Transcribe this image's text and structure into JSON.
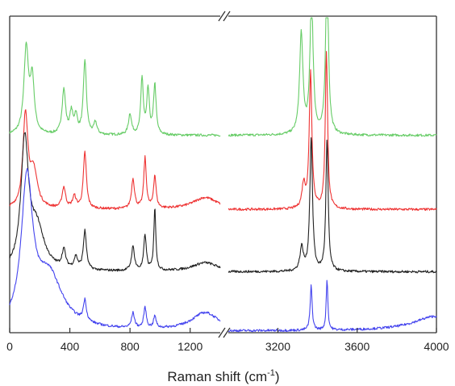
{
  "chart_data": {
    "type": "line",
    "title": "",
    "xlabel": "Raman shift (cm",
    "xlabel_sup": "-1",
    "xlabel_suffix": ")",
    "ylabel": "",
    "axis_break": true,
    "segments": [
      {
        "xlim": [
          0,
          1400
        ],
        "ticks": [
          0,
          400,
          800,
          1200
        ]
      },
      {
        "xlim": [
          2950,
          4000
        ],
        "ticks": [
          3200,
          3600,
          4000
        ]
      }
    ],
    "y_ticks_shown": false,
    "grid": false,
    "legend": "none",
    "series": [
      {
        "color": "#66cc66",
        "offset": 3.0,
        "baseline": 0.3,
        "peaks": [
          {
            "x": 110,
            "h": 1.45,
            "w": 18
          },
          {
            "x": 150,
            "h": 0.9,
            "w": 16
          },
          {
            "x": 360,
            "h": 0.75,
            "w": 14
          },
          {
            "x": 410,
            "h": 0.35,
            "w": 12
          },
          {
            "x": 440,
            "h": 0.3,
            "w": 12
          },
          {
            "x": 500,
            "h": 1.25,
            "w": 12
          },
          {
            "x": 570,
            "h": 0.2,
            "w": 12
          },
          {
            "x": 800,
            "h": 0.35,
            "w": 12
          },
          {
            "x": 880,
            "h": 0.95,
            "w": 10
          },
          {
            "x": 920,
            "h": 0.75,
            "w": 10
          },
          {
            "x": 965,
            "h": 0.85,
            "w": 10
          },
          {
            "x": 3318,
            "h": 1.7,
            "w": 10
          },
          {
            "x": 3370,
            "h": 2.4,
            "w": 9
          },
          {
            "x": 3448,
            "h": 3.0,
            "w": 8
          }
        ]
      },
      {
        "color": "#ee3333",
        "offset": 2.0,
        "baseline": 0.05,
        "peaks": [
          {
            "x": 105,
            "h": 1.55,
            "w": 20
          },
          {
            "x": 160,
            "h": 0.6,
            "w": 30
          },
          {
            "x": 360,
            "h": 0.35,
            "w": 14
          },
          {
            "x": 430,
            "h": 0.2,
            "w": 14
          },
          {
            "x": 500,
            "h": 0.95,
            "w": 12
          },
          {
            "x": 820,
            "h": 0.5,
            "w": 12
          },
          {
            "x": 900,
            "h": 0.85,
            "w": 10
          },
          {
            "x": 965,
            "h": 0.55,
            "w": 10
          },
          {
            "x": 1300,
            "h": 0.2,
            "w": 100
          },
          {
            "x": 3330,
            "h": 0.4,
            "w": 10
          },
          {
            "x": 3365,
            "h": 2.3,
            "w": 8
          },
          {
            "x": 3445,
            "h": 2.65,
            "w": 7
          }
        ]
      },
      {
        "color": "#222222",
        "offset": 1.0,
        "baseline": 0.0,
        "peaks": [
          {
            "x": 100,
            "h": 2.1,
            "w": 30
          },
          {
            "x": 180,
            "h": 0.7,
            "w": 60
          },
          {
            "x": 360,
            "h": 0.3,
            "w": 14
          },
          {
            "x": 440,
            "h": 0.2,
            "w": 14
          },
          {
            "x": 500,
            "h": 0.65,
            "w": 12
          },
          {
            "x": 820,
            "h": 0.4,
            "w": 12
          },
          {
            "x": 900,
            "h": 0.6,
            "w": 10
          },
          {
            "x": 965,
            "h": 1.05,
            "w": 8
          },
          {
            "x": 1300,
            "h": 0.15,
            "w": 100
          },
          {
            "x": 3320,
            "h": 0.4,
            "w": 10
          },
          {
            "x": 3368,
            "h": 2.25,
            "w": 8
          },
          {
            "x": 3448,
            "h": 2.2,
            "w": 7
          }
        ]
      },
      {
        "color": "#4444ee",
        "offset": 0.0,
        "baseline": 0.0,
        "peaks": [
          {
            "x": 115,
            "h": 2.4,
            "w": 45
          },
          {
            "x": 260,
            "h": 0.9,
            "w": 110
          },
          {
            "x": 500,
            "h": 0.35,
            "w": 12
          },
          {
            "x": 820,
            "h": 0.25,
            "w": 12
          },
          {
            "x": 900,
            "h": 0.35,
            "w": 10
          },
          {
            "x": 965,
            "h": 0.2,
            "w": 10
          },
          {
            "x": 1300,
            "h": 0.3,
            "w": 110
          },
          {
            "x": 3368,
            "h": 0.75,
            "w": 6
          },
          {
            "x": 3448,
            "h": 0.85,
            "w": 5
          },
          {
            "x": 4000,
            "h": 0.25,
            "w": 140
          }
        ]
      }
    ],
    "ylim": [
      0,
      5.2
    ]
  }
}
